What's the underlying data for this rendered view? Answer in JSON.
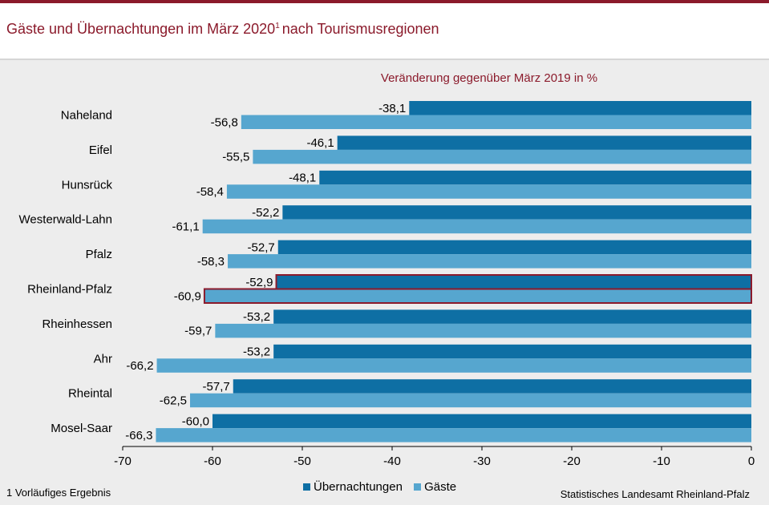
{
  "title": "Gäste und Übernachtungen im März 2020",
  "title_footnote_mark": "1",
  "title_suffix": "nach Tourismusregionen",
  "footnote": "1 Vorläufiges Ergebnis",
  "source": "Statistisches Landesamt Rheinland-Pfalz",
  "colors": {
    "brand": "#8b1a2b",
    "uebernachtungen": "#0e6fa4",
    "gaeste": "#56a6cf",
    "background": "#ededed"
  },
  "chart_data": {
    "type": "bar",
    "orientation": "horizontal",
    "title": "Veränderung gegenüber März 2019 in %",
    "categories": [
      "Naheland",
      "Eifel",
      "Hunsrück",
      "Westerwald-Lahn",
      "Pfalz",
      "Rheinland-Pfalz",
      "Rheinhessen",
      "Ahr",
      "Rheintal",
      "Mosel-Saar"
    ],
    "series": [
      {
        "name": "Übernachtungen",
        "values": [
          -38.1,
          -46.1,
          -48.1,
          -52.2,
          -52.7,
          -52.9,
          -53.2,
          -53.2,
          -57.7,
          -60.0
        ],
        "labels": [
          "-38,1",
          "-46,1",
          "-48,1",
          "-52,2",
          "-52,7",
          "-52,9",
          "-53,2",
          "-53,2",
          "-57,7",
          "-60,0"
        ]
      },
      {
        "name": "Gäste",
        "values": [
          -56.8,
          -55.5,
          -58.4,
          -61.1,
          -58.3,
          -60.9,
          -59.7,
          -66.2,
          -62.5,
          -66.3
        ],
        "labels": [
          "-56,8",
          "-55,5",
          "-58,4",
          "-61,1",
          "-58,3",
          "-60,9",
          "-59,7",
          "-66,2",
          "-62,5",
          "-66,3"
        ]
      }
    ],
    "highlighted_category": "Rheinland-Pfalz",
    "xlim": [
      -70,
      0
    ],
    "xticks": [
      -70,
      -60,
      -50,
      -40,
      -30,
      -20,
      -10,
      0
    ],
    "xtick_labels": [
      "-70",
      "-60",
      "-50",
      "-40",
      "-30",
      "-20",
      "-10",
      "0"
    ],
    "grid": false,
    "legend_position": "bottom"
  }
}
